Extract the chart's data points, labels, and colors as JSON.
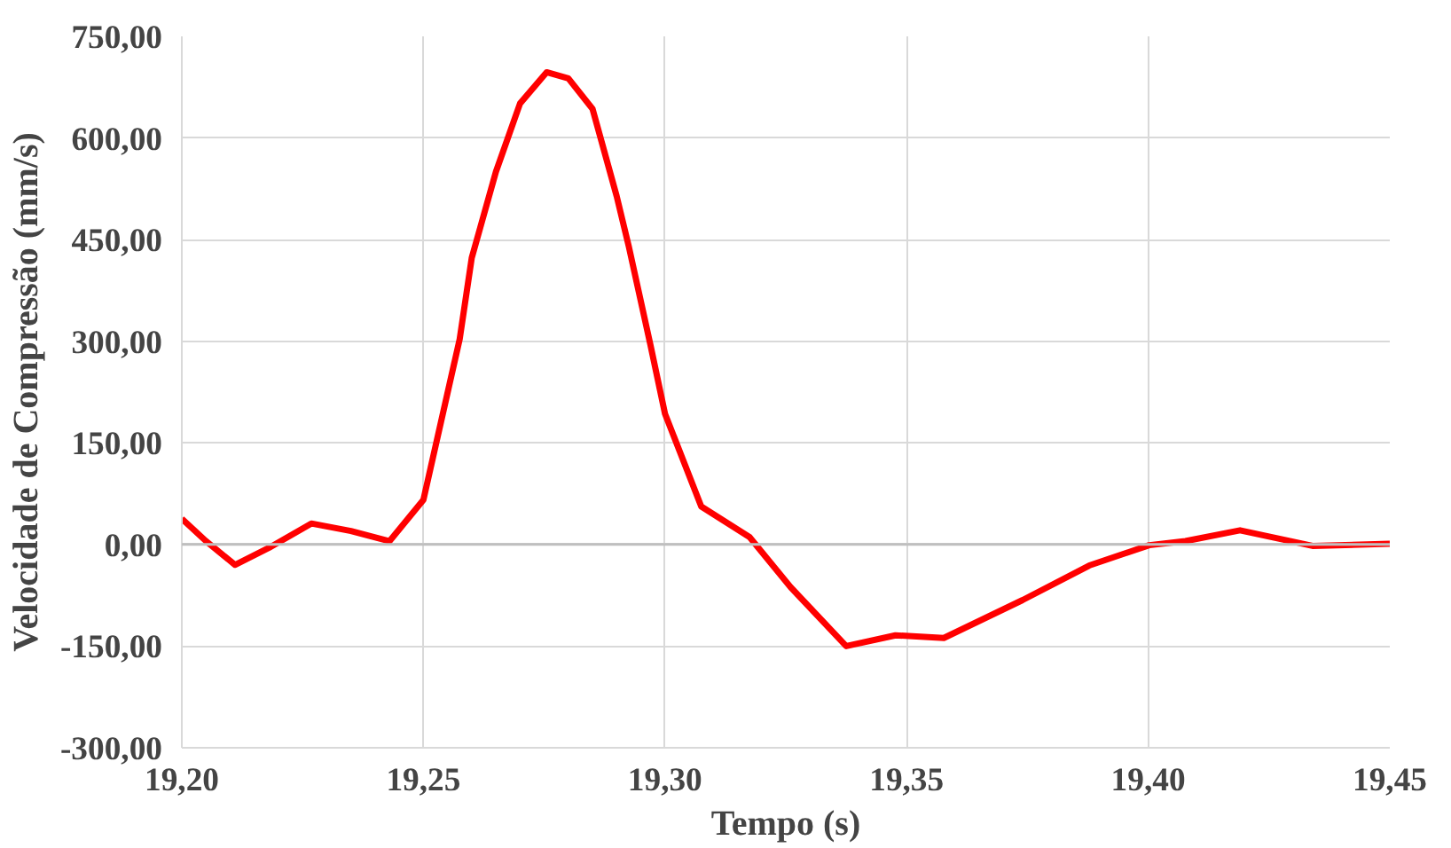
{
  "chart_data": {
    "type": "line",
    "xlabel": "Tempo (s)",
    "ylabel": "Velocidade de Compressão (mm/s)",
    "x": [
      19.2,
      19.205,
      19.211,
      19.218,
      19.2268,
      19.235,
      19.243,
      19.25,
      19.2575,
      19.26,
      19.265,
      19.27,
      19.2755,
      19.28,
      19.285,
      19.29,
      19.2925,
      19.297,
      19.3,
      19.3075,
      19.3175,
      19.326,
      19.3375,
      19.3477,
      19.3577,
      19.374,
      19.3878,
      19.4002,
      19.4077,
      19.419,
      19.434,
      19.45
    ],
    "series": [
      {
        "color": "#ff0000",
        "values": [
          38,
          5,
          -30,
          -5,
          31,
          20,
          5,
          66,
          303,
          423,
          550,
          651,
          697,
          688,
          643,
          514,
          440,
          294,
          193,
          56,
          11,
          -63,
          -150,
          -134,
          -138,
          -82,
          -31,
          -1,
          5,
          21,
          -2,
          1
        ]
      }
    ],
    "xlim": [
      19.2,
      19.45
    ],
    "xticks": [
      {
        "value": 19.2,
        "label": "19,20"
      },
      {
        "value": 19.25,
        "label": "19,25"
      },
      {
        "value": 19.3,
        "label": "19,30"
      },
      {
        "value": 19.35,
        "label": "19,35"
      },
      {
        "value": 19.4,
        "label": "19,40"
      },
      {
        "value": 19.45,
        "label": "19,45"
      }
    ],
    "ylim": [
      -300,
      750
    ],
    "yticks": [
      {
        "value": -300,
        "label": "-300,00"
      },
      {
        "value": -150,
        "label": "-150,00"
      },
      {
        "value": 0,
        "label": "0,00"
      },
      {
        "value": 150,
        "label": "150,00"
      },
      {
        "value": 300,
        "label": "300,00"
      },
      {
        "value": 450,
        "label": "450,00"
      },
      {
        "value": 600,
        "label": "600,00"
      },
      {
        "value": 750,
        "label": "750,00"
      }
    ],
    "grid": true,
    "marker": "none",
    "line_style": "solid"
  }
}
